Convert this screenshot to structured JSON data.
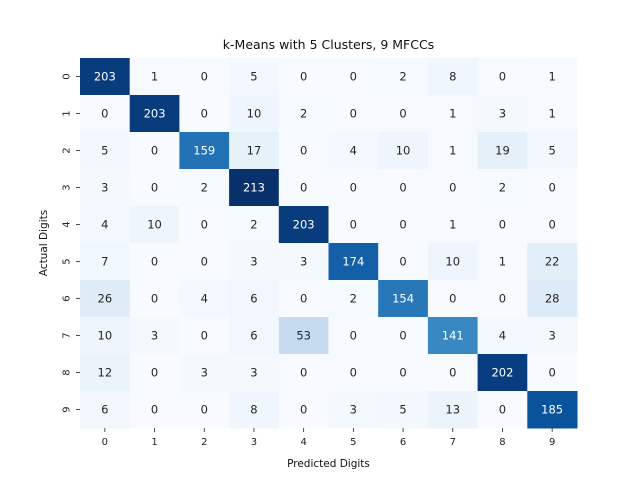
{
  "chart_data": {
    "type": "heatmap",
    "title": "k-Means with 5 Clusters, 9 MFCCs",
    "xlabel": "Predicted Digits",
    "ylabel": "Actual Digits",
    "x_categories": [
      "0",
      "1",
      "2",
      "3",
      "4",
      "5",
      "6",
      "7",
      "8",
      "9"
    ],
    "y_categories": [
      "0",
      "1",
      "2",
      "3",
      "4",
      "5",
      "6",
      "7",
      "8",
      "9"
    ],
    "values": [
      [
        203,
        1,
        0,
        5,
        0,
        0,
        2,
        8,
        0,
        1
      ],
      [
        0,
        203,
        0,
        10,
        2,
        0,
        0,
        1,
        3,
        1
      ],
      [
        5,
        0,
        159,
        17,
        0,
        4,
        10,
        1,
        19,
        5
      ],
      [
        3,
        0,
        2,
        213,
        0,
        0,
        0,
        0,
        2,
        0
      ],
      [
        4,
        10,
        0,
        2,
        203,
        0,
        0,
        1,
        0,
        0
      ],
      [
        7,
        0,
        0,
        3,
        3,
        174,
        0,
        10,
        1,
        22
      ],
      [
        26,
        0,
        4,
        6,
        0,
        2,
        154,
        0,
        0,
        28
      ],
      [
        10,
        3,
        0,
        6,
        53,
        0,
        0,
        141,
        4,
        3
      ],
      [
        12,
        0,
        3,
        3,
        0,
        0,
        0,
        0,
        202,
        0
      ],
      [
        6,
        0,
        0,
        8,
        0,
        3,
        5,
        13,
        0,
        185
      ]
    ],
    "colormap": "Blues",
    "value_range": [
      0,
      213
    ],
    "colorbar": false,
    "annotations": true
  }
}
